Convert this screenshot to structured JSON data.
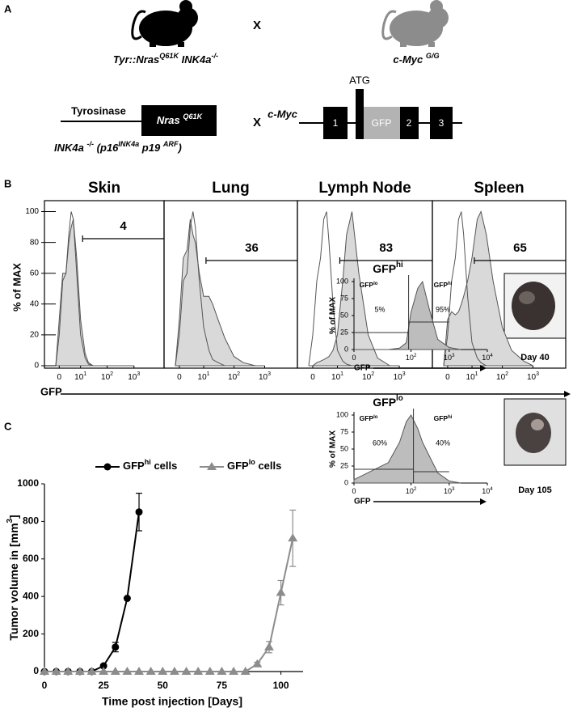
{
  "diagram": {
    "label": "A",
    "mouse_left": [
      {
        "text": "Tyr::Nras"
      },
      {
        "text": "Q61K",
        "sup": true
      },
      {
        "text": " INK4a"
      },
      {
        "text": "-/-",
        "sup": true
      }
    ],
    "cross_top": "X",
    "mouse_right": [
      {
        "text": "c-Myc "
      },
      {
        "text": "G/G",
        "sup": true
      }
    ],
    "promoter": "Tyrosinase",
    "transgene": [
      {
        "text": "Nras "
      },
      {
        "text": "Q61K",
        "sup": true
      }
    ],
    "ink4a": [
      {
        "text": "INK4a "
      },
      {
        "text": "-/-",
        "sup": true
      },
      {
        "text": " (p16"
      },
      {
        "text": "INK4a",
        "sup": true
      },
      {
        "text": " p19 "
      },
      {
        "text": "ARF",
        "sup": true
      },
      {
        "text": ")"
      }
    ],
    "cross_bottom": "X",
    "gene": "c-Myc",
    "atg": "ATG",
    "exons": [
      "1",
      "GFP",
      "2",
      "3"
    ]
  },
  "panel_labels": {
    "B": "B",
    "C": "C"
  },
  "chart_data": [
    {
      "type": "density",
      "title": "Skin",
      "ylabel": "% of MAX",
      "xlabel": "GFP",
      "x": [
        -1,
        0,
        1,
        2,
        3,
        4,
        5,
        7,
        10,
        15,
        20,
        30,
        50,
        100,
        200,
        500,
        1000
      ],
      "series": [
        {
          "color": "#d9d9d9",
          "values": [
            0,
            30,
            60,
            60,
            80,
            90,
            95,
            70,
            30,
            8,
            2,
            0,
            0,
            0,
            0,
            0,
            0
          ]
        },
        {
          "color": "none",
          "values": [
            0,
            20,
            55,
            60,
            85,
            100,
            95,
            60,
            20,
            5,
            1,
            0,
            0,
            0,
            0,
            0,
            0
          ]
        }
      ],
      "gate_from": 12,
      "gate_value": 4,
      "xlim": [
        -1,
        5000
      ],
      "ylim": [
        0,
        105
      ],
      "xticks": [
        {
          "value": 0,
          "label": "0"
        },
        {
          "value": 10,
          "label": "10",
          "sup": "1"
        },
        {
          "value": 100,
          "label": "10",
          "sup": "2"
        },
        {
          "value": 1000,
          "label": "10",
          "sup": "3"
        }
      ],
      "yticks": [
        0,
        20,
        40,
        60,
        80,
        100
      ]
    },
    {
      "type": "density",
      "title": "Lung",
      "x": [
        -1,
        0,
        1,
        2,
        3,
        4,
        5,
        7,
        10,
        15,
        20,
        30,
        50,
        100,
        200,
        500,
        1000
      ],
      "series": [
        {
          "color": "#d9d9d9",
          "values": [
            0,
            30,
            70,
            75,
            95,
            85,
            80,
            60,
            45,
            45,
            40,
            30,
            18,
            6,
            2,
            0,
            0
          ]
        },
        {
          "color": "none",
          "values": [
            0,
            20,
            55,
            60,
            90,
            100,
            90,
            55,
            25,
            10,
            4,
            2,
            0,
            0,
            0,
            0,
            0
          ]
        }
      ],
      "gate_from": 12,
      "gate_value": 36,
      "xlim": [
        -1,
        5000
      ],
      "ylim": [
        0,
        105
      ],
      "xticks": [
        {
          "value": 0,
          "label": "0"
        },
        {
          "value": 10,
          "label": "10",
          "sup": "1"
        },
        {
          "value": 100,
          "label": "10",
          "sup": "2"
        },
        {
          "value": 1000,
          "label": "10",
          "sup": "3"
        }
      ]
    },
    {
      "type": "density",
      "title": "Lymph Node",
      "x": [
        -1,
        0,
        1,
        2,
        3,
        4,
        5,
        7,
        10,
        15,
        20,
        30,
        50,
        100,
        200,
        500,
        1000
      ],
      "series": [
        {
          "color": "#d9d9d9",
          "values": [
            0,
            0,
            2,
            3,
            4,
            5,
            6,
            10,
            20,
            55,
            85,
            100,
            60,
            20,
            5,
            0,
            0
          ]
        },
        {
          "color": "none",
          "values": [
            0,
            20,
            55,
            70,
            95,
            100,
            80,
            40,
            10,
            3,
            1,
            0,
            0,
            0,
            0,
            0,
            0
          ]
        }
      ],
      "gate_from": 12,
      "gate_value": 83,
      "xlim": [
        -1,
        5000
      ],
      "ylim": [
        0,
        105
      ],
      "xticks": [
        {
          "value": 0,
          "label": "0"
        },
        {
          "value": 10,
          "label": "10",
          "sup": "1"
        },
        {
          "value": 100,
          "label": "10",
          "sup": "2"
        },
        {
          "value": 1000,
          "label": "10",
          "sup": "3"
        }
      ]
    },
    {
      "type": "density",
      "title": "Spleen",
      "x": [
        -1,
        0,
        1,
        2,
        3,
        4,
        5,
        7,
        10,
        15,
        20,
        30,
        50,
        100,
        200,
        500,
        1000
      ],
      "series": [
        {
          "color": "#d9d9d9",
          "values": [
            0,
            30,
            35,
            33,
            35,
            40,
            45,
            55,
            70,
            95,
            100,
            85,
            55,
            25,
            10,
            3,
            0
          ]
        },
        {
          "color": "none",
          "values": [
            0,
            20,
            55,
            70,
            95,
            100,
            85,
            45,
            15,
            5,
            2,
            0,
            0,
            0,
            0,
            0,
            0
          ]
        }
      ],
      "gate_from": 12,
      "gate_value": 65,
      "xlim": [
        -1,
        5000
      ],
      "ylim": [
        0,
        105
      ],
      "xticks": [
        {
          "value": 0,
          "label": "0"
        },
        {
          "value": 10,
          "label": "10",
          "sup": "1"
        },
        {
          "value": 100,
          "label": "10",
          "sup": "2"
        },
        {
          "value": 1000,
          "label": "10",
          "sup": "3"
        }
      ]
    },
    {
      "type": "line",
      "xlabel": "Time post injection [Days]",
      "ylabel": [
        {
          "text": "Tumor volume in [mm"
        },
        {
          "text": "3",
          "sup": true
        },
        {
          "text": "]"
        }
      ],
      "xlim": [
        0,
        108
      ],
      "ylim": [
        0,
        1000
      ],
      "xticks": [
        0,
        25,
        50,
        75,
        100
      ],
      "yticks": [
        0,
        200,
        400,
        600,
        800,
        1000
      ],
      "series": [
        {
          "name": [
            {
              "text": "GFP"
            },
            {
              "text": "hi",
              "sup": true
            },
            {
              "text": " cells"
            }
          ],
          "color": "#000000",
          "marker": "circle",
          "x": [
            0,
            5,
            10,
            15,
            20,
            25,
            30,
            35,
            40
          ],
          "values": [
            0,
            0,
            0,
            0,
            0,
            30,
            130,
            390,
            850
          ],
          "errors": [
            0,
            0,
            0,
            0,
            0,
            5,
            25,
            0,
            100
          ]
        },
        {
          "name": [
            {
              "text": "GFP"
            },
            {
              "text": "lo",
              "sup": true
            },
            {
              "text": " cells"
            }
          ],
          "color": "#8c8c8c",
          "marker": "triangle",
          "x": [
            0,
            5,
            10,
            15,
            20,
            25,
            30,
            35,
            40,
            45,
            50,
            55,
            60,
            65,
            70,
            75,
            80,
            85,
            90,
            95,
            100,
            105
          ],
          "values": [
            0,
            0,
            0,
            0,
            0,
            0,
            0,
            0,
            0,
            0,
            0,
            0,
            0,
            0,
            0,
            0,
            0,
            0,
            40,
            130,
            420,
            710
          ],
          "errors": [
            0,
            0,
            0,
            0,
            0,
            0,
            0,
            0,
            0,
            0,
            0,
            0,
            0,
            0,
            0,
            0,
            0,
            0,
            10,
            30,
            65,
            150
          ]
        }
      ]
    },
    {
      "type": "density",
      "title": [
        {
          "text": "GFP"
        },
        {
          "text": "hi",
          "sup": true
        }
      ],
      "ylabel": "% of MAX",
      "xlabel": "GFP",
      "x": [
        0,
        25,
        50,
        75,
        100,
        150,
        200,
        300,
        500,
        1000,
        2000
      ],
      "series": [
        {
          "color": "#bdbdbd",
          "values": [
            0,
            0,
            2,
            10,
            55,
            90,
            100,
            60,
            15,
            3,
            0
          ]
        }
      ],
      "gate_names": [
        [
          {
            "text": "GFP"
          },
          {
            "text": "lo",
            "sup": true
          }
        ],
        [
          {
            "text": "GFP"
          },
          {
            "text": "hi",
            "sup": true
          }
        ]
      ],
      "gate_values": [
        5,
        95
      ],
      "gate_value_labels": [
        "5%",
        "95%"
      ],
      "xlim": [
        0,
        10000
      ],
      "ylim": [
        0,
        100
      ],
      "xticks": [
        {
          "value": 0,
          "label": "0"
        },
        {
          "value": 100,
          "label": "10",
          "sup": "2"
        },
        {
          "value": 1000,
          "label": "10",
          "sup": "3"
        },
        {
          "value": 10000,
          "label": "10",
          "sup": "4"
        }
      ],
      "yticks": [
        0,
        25,
        50,
        75,
        100
      ],
      "caption": "Day 40"
    },
    {
      "type": "density",
      "title": [
        {
          "text": "GFP"
        },
        {
          "text": "lo",
          "sup": true
        }
      ],
      "ylabel": "% of MAX",
      "xlabel": "GFP",
      "x": [
        0,
        25,
        50,
        75,
        100,
        150,
        200,
        300,
        500,
        1000,
        2000
      ],
      "series": [
        {
          "color": "#bdbdbd",
          "values": [
            5,
            30,
            60,
            90,
            100,
            80,
            60,
            40,
            15,
            3,
            0
          ]
        }
      ],
      "gate_names": [
        [
          {
            "text": "GFP"
          },
          {
            "text": "lo",
            "sup": true
          }
        ],
        [
          {
            "text": "GFP"
          },
          {
            "text": "hi",
            "sup": true
          }
        ]
      ],
      "gate_values": [
        60,
        40
      ],
      "gate_value_labels": [
        "60%",
        "40%"
      ],
      "xlim": [
        0,
        10000
      ],
      "ylim": [
        0,
        100
      ],
      "xticks": [
        {
          "value": 0,
          "label": "0"
        },
        {
          "value": 100,
          "label": "10",
          "sup": "2"
        },
        {
          "value": 1000,
          "label": "10",
          "sup": "3"
        },
        {
          "value": 10000,
          "label": "10",
          "sup": "4"
        }
      ],
      "yticks": [
        0,
        25,
        50,
        75,
        100
      ],
      "caption": "Day 105"
    }
  ]
}
